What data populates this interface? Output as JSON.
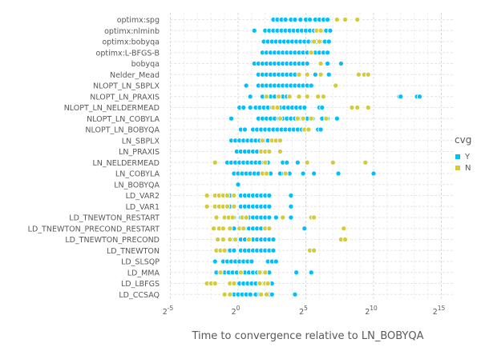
{
  "chart_data": {
    "type": "scatter",
    "xlabel": "Time to convergence relative to LN_BOBYQA",
    "x_scale": "log2",
    "x_ticks": [
      {
        "exp": -5,
        "base": "2",
        "sup": "-5"
      },
      {
        "exp": 0,
        "base": "2",
        "sup": "0"
      },
      {
        "exp": 5,
        "base": "2",
        "sup": "5"
      },
      {
        "exp": 10,
        "base": "2",
        "sup": "10"
      },
      {
        "exp": 15,
        "base": "2",
        "sup": "15"
      }
    ],
    "xlim_log2": [
      -5,
      15
    ],
    "categories": [
      "optimx:spg",
      "optimx:nlminb",
      "optimx:bobyqa",
      "optimx:L-BFGS-B",
      "bobyqa",
      "Nelder_Mead",
      "NLOPT_LN_SBPLX",
      "NLOPT_LN_PRAXIS",
      "NLOPT_LN_NELDERMEAD",
      "NLOPT_LN_COBYLA",
      "NLOPT_LN_BOBYQA",
      "LN_SBPLX",
      "LN_PRAXIS",
      "LN_NELDERMEAD",
      "LN_COBYLA",
      "LN_BOBYQA",
      "LD_VAR2",
      "LD_VAR1",
      "LD_TNEWTON_RESTART",
      "LD_TNEWTON_PRECOND_RESTART",
      "LD_TNEWTON_PRECOND",
      "LD_TNEWTON",
      "LD_SLSQP",
      "LD_MMA",
      "LD_LBFGS",
      "LD_CCSAQ"
    ],
    "legend": {
      "title": "cvg",
      "position": "right",
      "entries": [
        "Y",
        "N"
      ]
    },
    "colors": {
      "Y": "#00BFFF",
      "N": "#D4CA3A"
    },
    "grid": true,
    "series": [
      {
        "name": "Y",
        "points": [
          [
            "optimx:spg",
            [
              2.6,
              2.9,
              3.2,
              3.5,
              3.9,
              4.2,
              4.6,
              5.0,
              5.3,
              5.7,
              6.0,
              6.3,
              6.6
            ]
          ],
          [
            "optimx:nlminb",
            [
              1.2,
              2.0,
              2.3,
              2.6,
              2.9,
              3.2,
              3.5,
              3.8,
              4.1,
              4.4,
              4.7,
              5.0,
              5.3,
              5.6,
              5.9,
              6.2,
              6.5,
              6.8
            ]
          ],
          [
            "optimx:bobyqa",
            [
              1.9,
              2.2,
              2.5,
              2.8,
              3.1,
              3.4,
              3.7,
              4.0,
              4.3,
              4.6,
              4.9,
              5.2,
              5.5,
              5.8,
              6.1,
              6.4,
              6.7
            ]
          ],
          [
            "optimx:L-BFGS-B",
            [
              1.8,
              2.1,
              2.4,
              2.7,
              3.0,
              3.3,
              3.6,
              3.9,
              4.2,
              4.5,
              4.8,
              5.1,
              5.4,
              5.7,
              6.0,
              6.3,
              6.6
            ]
          ],
          [
            "bobyqa",
            [
              1.2,
              1.5,
              1.8,
              2.1,
              2.4,
              2.7,
              3.0,
              3.3,
              3.6,
              3.9,
              4.2,
              4.5,
              4.8,
              5.1,
              6.6,
              7.6
            ]
          ],
          [
            "Nelder_Mead",
            [
              1.5,
              1.8,
              2.1,
              2.4,
              2.7,
              3.0,
              3.3,
              3.6,
              3.9,
              4.2,
              5.7,
              6.7
            ]
          ],
          [
            "NLOPT_LN_SBPLX",
            [
              0.6,
              1.5,
              1.8,
              2.1,
              2.4,
              2.7,
              3.0,
              3.3,
              3.6,
              3.9,
              4.2,
              4.5,
              4.8,
              5.1,
              5.4
            ]
          ],
          [
            "NLOPT_LN_PRAXIS",
            [
              0.9,
              1.8,
              2.1,
              2.4,
              2.7,
              3.0,
              3.3,
              3.6,
              11.9,
              12.0,
              13.2,
              13.4
            ]
          ],
          [
            "NLOPT_LN_NELDERMEAD",
            [
              0.1,
              0.4,
              0.9,
              1.3,
              1.6,
              1.9,
              2.2,
              2.5,
              2.8,
              3.1,
              3.4,
              3.7,
              4.0,
              4.3,
              4.6,
              4.9,
              6.0,
              6.2
            ]
          ],
          [
            "NLOPT_LN_COBYLA",
            [
              -0.5,
              1.5,
              1.8,
              2.1,
              2.4,
              2.7,
              3.0,
              3.3,
              3.6,
              3.9,
              4.2,
              4.5,
              4.8,
              5.1,
              5.5,
              6.2,
              6.6,
              7.3
            ]
          ],
          [
            "NLOPT_LN_BOBYQA",
            [
              0.2,
              0.5,
              1.1,
              1.4,
              1.7,
              2.0,
              2.3,
              2.6,
              2.9,
              3.2,
              3.5,
              3.8,
              4.1,
              4.4,
              4.7,
              5.1,
              5.9,
              6.1
            ]
          ],
          [
            "LN_SBPLX",
            [
              -0.5,
              -0.2,
              0.1,
              0.4,
              0.7,
              1.0,
              1.3,
              1.6,
              1.9,
              2.2
            ]
          ],
          [
            "LN_PRAXIS",
            [
              -0.1,
              0.2,
              0.5,
              0.8,
              1.1,
              1.4
            ]
          ],
          [
            "LN_NELDERMEAD",
            [
              -0.8,
              -0.5,
              -0.2,
              0.1,
              0.4,
              0.7,
              1.0,
              1.3,
              1.6,
              1.9,
              2.2,
              3.3,
              3.6,
              4.4
            ]
          ],
          [
            "LN_COBYLA",
            [
              -0.3,
              0.0,
              0.3,
              0.6,
              0.9,
              1.2,
              1.5,
              1.8,
              2.1,
              2.4,
              3.1,
              3.4,
              3.8,
              4.8,
              5.6,
              7.4,
              10.0
            ]
          ],
          [
            "LN_BOBYQA",
            [
              0.0
            ]
          ],
          [
            "LD_VAR2",
            [
              -0.6,
              -0.3,
              0.2,
              0.5,
              0.8,
              1.1,
              1.4,
              1.7,
              2.0,
              2.3,
              3.9
            ]
          ],
          [
            "LD_VAR1",
            [
              -0.6,
              -0.3,
              0.2,
              0.5,
              0.8,
              1.1,
              1.4,
              1.7,
              2.0,
              2.3,
              3.9
            ]
          ],
          [
            "LD_TNEWTON_RESTART",
            [
              -0.6,
              -0.3,
              0.2,
              0.5,
              0.8,
              1.1,
              1.4,
              1.7,
              2.0,
              2.3,
              2.8,
              3.9
            ]
          ],
          [
            "LD_TNEWTON_PRECOND_RESTART",
            [
              -0.6,
              -0.3,
              0.2,
              0.5,
              0.8,
              1.1,
              1.4,
              1.7,
              2.0,
              2.3,
              4.9
            ]
          ],
          [
            "LD_TNEWTON_PRECOND",
            [
              -0.6,
              -0.3,
              0.2,
              0.5,
              0.8,
              1.1,
              1.4,
              1.7,
              2.0,
              2.3,
              2.6
            ]
          ],
          [
            "LD_TNEWTON",
            [
              -0.9,
              -0.6,
              -0.3,
              0.2,
              0.5,
              0.8,
              1.1,
              1.4,
              1.7,
              2.0,
              2.3,
              2.6
            ]
          ],
          [
            "LD_SLSQP",
            [
              -1.7,
              -1.1,
              -0.8,
              -0.5,
              -0.2,
              0.1,
              0.4,
              0.7,
              1.0,
              2.2,
              2.5,
              2.8
            ]
          ],
          [
            "LD_MMA",
            [
              -1.6,
              -1.0,
              -0.7,
              -0.4,
              -0.1,
              0.2,
              0.5,
              0.8,
              1.1,
              1.4,
              1.7,
              2.0,
              2.3,
              4.3,
              5.4
            ]
          ],
          [
            "LD_LBFGS",
            [
              -0.2,
              0.1,
              0.4,
              0.7,
              1.0,
              1.3,
              1.6,
              1.9,
              2.2,
              2.5
            ]
          ],
          [
            "LD_CCSAQ",
            [
              -0.3,
              0.0,
              0.3,
              0.6,
              0.9,
              1.3,
              1.6,
              2.3,
              2.5,
              4.2
            ]
          ]
        ]
      },
      {
        "name": "N",
        "points": [
          [
            "optimx:spg",
            [
              7.3,
              7.9,
              8.8
            ]
          ],
          [
            "optimx:nlminb",
            [
              5.8,
              6.1
            ]
          ],
          [
            "optimx:bobyqa",
            [
              5.6,
              6.0
            ]
          ],
          [
            "optimx:L-BFGS-B",
            [
              5.4
            ]
          ],
          [
            "bobyqa",
            [
              6.1
            ]
          ],
          [
            "Nelder_Mead",
            [
              4.5,
              5.1,
              6.1,
              8.9,
              9.3,
              9.6
            ]
          ],
          [
            "NLOPT_LN_SBPLX",
            [
              7.2
            ]
          ],
          [
            "NLOPT_LN_PRAXIS",
            [
              2.1,
              3.0,
              3.8,
              4.5,
              5.1,
              5.9,
              6.3
            ]
          ],
          [
            "NLOPT_LN_NELDERMEAD",
            [
              2.6,
              2.9,
              8.4,
              8.8,
              9.6
            ]
          ],
          [
            "NLOPT_LN_COBYLA",
            [
              3.1,
              4.4,
              4.8,
              5.4,
              6.5
            ]
          ],
          [
            "NLOPT_LN_BOBYQA",
            [
              4.9,
              5.2
            ]
          ],
          [
            "LN_SBPLX",
            [
              1.8,
              2.5,
              2.8,
              3.1
            ]
          ],
          [
            "LN_PRAXIS",
            [
              1.7,
              2.0,
              2.3,
              3.1
            ]
          ],
          [
            "LN_NELDERMEAD",
            [
              -1.7,
              2.0,
              5.1,
              7.0,
              9.4
            ]
          ],
          [
            "LN_COBYLA",
            [
              1.8,
              2.1,
              3.5
            ]
          ],
          [
            "LD_VAR2",
            [
              -2.3,
              -1.7,
              -1.4,
              -1.1,
              -0.8,
              -0.3
            ]
          ],
          [
            "LD_VAR1",
            [
              -2.3,
              -1.7,
              -1.4,
              -1.1,
              -0.8,
              -0.3
            ]
          ],
          [
            "LD_TNEWTON_RESTART",
            [
              -1.6,
              -1.0,
              -0.7,
              -0.4,
              0.3,
              0.6,
              3.3,
              5.4,
              5.6
            ]
          ],
          [
            "LD_TNEWTON_PRECOND_RESTART",
            [
              -1.8,
              -1.4,
              -1.1,
              -0.6,
              0.1,
              0.4,
              2.0,
              2.3,
              7.8
            ]
          ],
          [
            "LD_TNEWTON_PRECOND",
            [
              -1.5,
              -1.1,
              -0.6,
              -0.2,
              0.8,
              7.6,
              7.9
            ]
          ],
          [
            "LD_TNEWTON",
            [
              -1.6,
              -1.3,
              -1.0,
              5.3,
              5.6
            ]
          ],
          [
            "LD_SLSQP",
            []
          ],
          [
            "LD_MMA",
            [
              -1.3,
              0.2,
              1.6,
              2.0
            ]
          ],
          [
            "LD_LBFGS",
            [
              -2.3,
              -2.0,
              -1.7,
              -0.6,
              -0.3,
              1.6,
              2.0,
              2.2
            ]
          ],
          [
            "LD_CCSAQ",
            [
              -1.0,
              -0.6,
              1.7,
              2.1
            ]
          ]
        ]
      }
    ]
  }
}
